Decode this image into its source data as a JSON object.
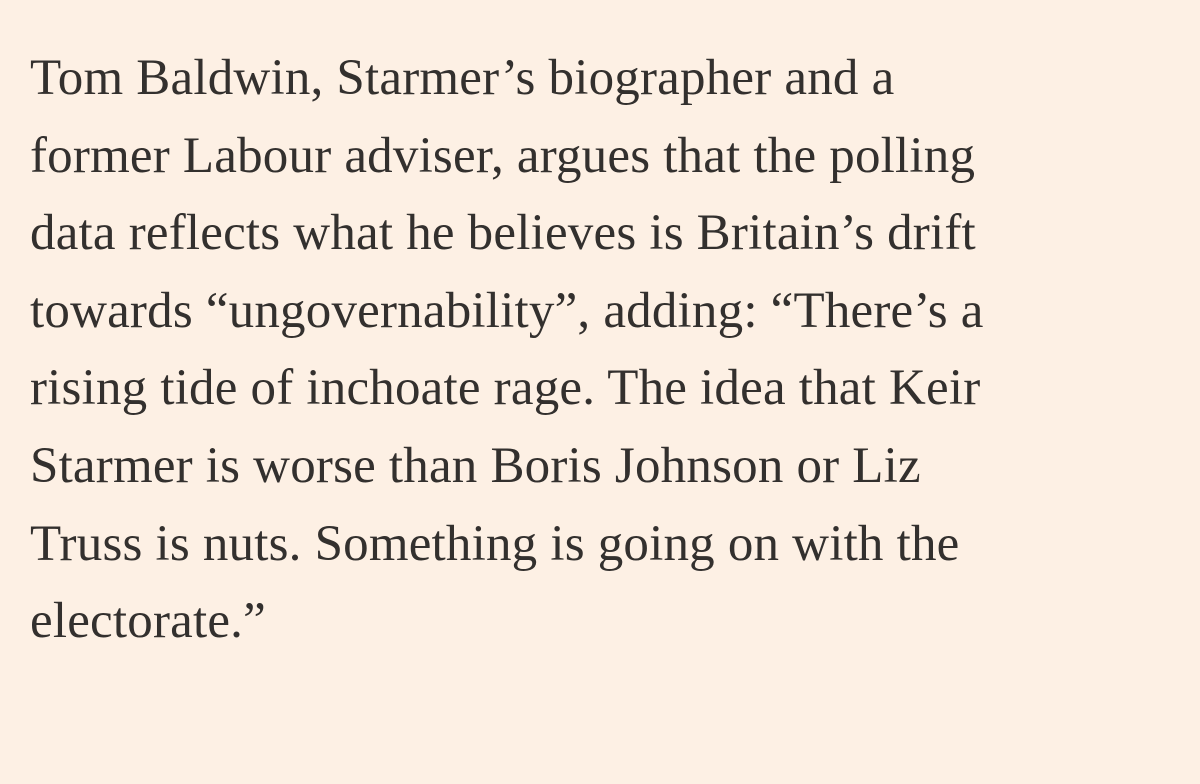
{
  "paragraph": {
    "lines": [
      "Tom Baldwin, Starmer’s biographer and a",
      "former Labour adviser, argues that the polling",
      "data reflects what he believes is Britain’s drift",
      "towards “ungovernability”, adding: “There’s a",
      "rising tide of inchoate rage. The idea that Keir",
      "Starmer is worse than Boris Johnson or Liz",
      "Truss is nuts. Something is going on with the",
      "electorate.”"
    ]
  }
}
